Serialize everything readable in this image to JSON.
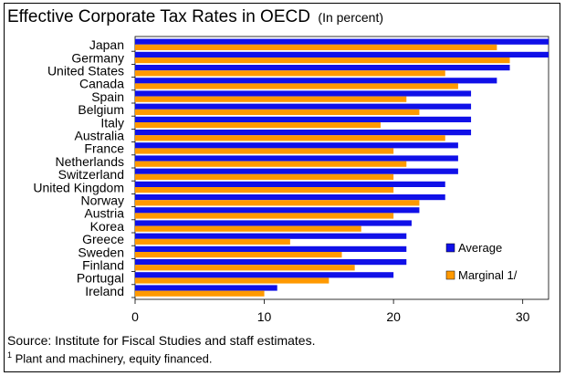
{
  "colors": {
    "average": "#1010E8",
    "marginal": "#FF9900"
  },
  "chart_data": {
    "type": "bar",
    "orientation": "horizontal",
    "title": "Effective Corporate Tax Rates in OECD",
    "subtitle": "(In percent)",
    "categories": [
      "Japan",
      "Germany",
      "United States",
      "Canada",
      "Spain",
      "Belgium",
      "Italy",
      "Australia",
      "France",
      "Netherlands",
      "Switzerland",
      "United Kingdom",
      "Norway",
      "Austria",
      "Korea",
      "Greece",
      "Sweden",
      "Finland",
      "Portugal",
      "Ireland"
    ],
    "series": [
      {
        "name": "Average",
        "values": [
          32,
          32,
          29,
          28,
          26,
          26,
          26,
          26,
          25,
          25,
          25,
          24,
          24,
          22,
          21.4,
          21,
          21,
          21,
          20,
          11
        ]
      },
      {
        "name": "Marginal 1/",
        "values": [
          28,
          29,
          24,
          25,
          21,
          22,
          19,
          24,
          20,
          21,
          20,
          20,
          22,
          20,
          17.5,
          12,
          16,
          17,
          15,
          10
        ]
      }
    ],
    "xlim": [
      0,
      32
    ],
    "xticks": [
      "0",
      "10",
      "20",
      "30"
    ],
    "legend_position": "lower-right"
  },
  "footer": {
    "source": "Source: Institute for Fiscal Studies and staff estimates.",
    "note_marker": "1",
    "note": " Plant and machinery, equity financed."
  }
}
